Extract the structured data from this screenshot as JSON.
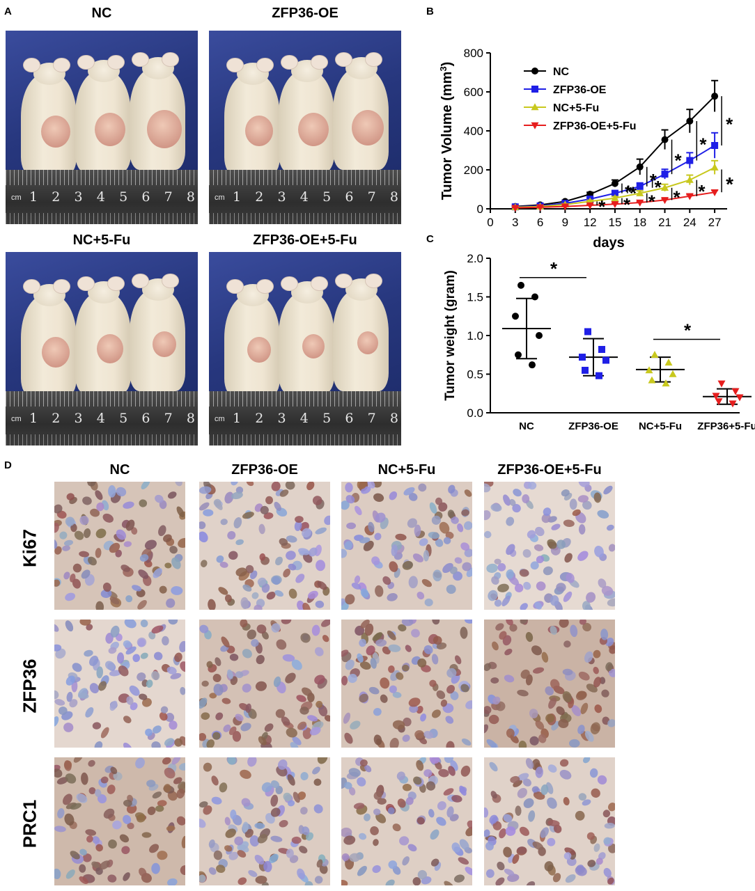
{
  "panels": {
    "a": "A",
    "b": "B",
    "c": "C",
    "d": "D"
  },
  "panel_a": {
    "photos": [
      {
        "title": "NC",
        "tumor_sizes": [
          0.55,
          0.6,
          0.75
        ]
      },
      {
        "title": "ZFP36-OE",
        "tumor_sizes": [
          0.5,
          0.6,
          0.65
        ]
      },
      {
        "title": "NC+5-Fu",
        "tumor_sizes": [
          0.5,
          0.45,
          0.35
        ]
      },
      {
        "title": "ZFP36-OE+5-Fu",
        "tumor_sizes": [
          0.35,
          0.3,
          0.25
        ]
      }
    ],
    "ruler_numbers": [
      "1",
      "2",
      "3",
      "4",
      "5",
      "6",
      "7",
      "8"
    ],
    "ruler_unit": "cm"
  },
  "chart_data": [
    {
      "id": "tumor_volume",
      "type": "line",
      "xlabel": "days",
      "ylabel_main": "Tumor Volume (mm",
      "ylabel_sup": "3",
      "ylabel_close": ")",
      "x": [
        3,
        6,
        9,
        12,
        15,
        18,
        21,
        24,
        27
      ],
      "xticks": [
        0,
        3,
        6,
        9,
        12,
        15,
        18,
        21,
        24,
        27
      ],
      "yticks": [
        0,
        200,
        400,
        600,
        800
      ],
      "xlim": [
        0,
        28.5
      ],
      "ylim": [
        0,
        800
      ],
      "series": [
        {
          "name": "NC",
          "color": "#000000",
          "marker": "circle",
          "values": [
            12,
            20,
            38,
            75,
            130,
            215,
            355,
            450,
            578
          ],
          "err": [
            3,
            5,
            6,
            10,
            18,
            40,
            50,
            60,
            80
          ]
        },
        {
          "name": "ZFP36-OE",
          "color": "#1f1fe6",
          "marker": "square",
          "values": [
            10,
            15,
            28,
            50,
            80,
            115,
            178,
            248,
            325
          ],
          "err": [
            3,
            4,
            5,
            8,
            12,
            18,
            25,
            40,
            65
          ]
        },
        {
          "name": "NC+5-Fu",
          "color": "#c8c81e",
          "marker": "triangle-up",
          "values": [
            8,
            12,
            22,
            38,
            55,
            80,
            108,
            148,
            212
          ],
          "err": [
            2,
            3,
            4,
            6,
            8,
            12,
            18,
            25,
            35
          ]
        },
        {
          "name": "ZFP36-OE+5-Fu",
          "color": "#e61e1e",
          "marker": "triangle-down",
          "values": [
            5,
            8,
            12,
            18,
            24,
            32,
            45,
            65,
            85
          ],
          "err": [
            2,
            2,
            3,
            3,
            4,
            5,
            6,
            8,
            10
          ]
        }
      ],
      "annotations": [
        "*",
        "*",
        "*",
        "*",
        "*",
        "*",
        "*",
        "*",
        "*",
        "*",
        "*",
        "*",
        "*",
        "**"
      ]
    },
    {
      "id": "tumor_weight",
      "type": "scatter",
      "ylabel": "Tumor weight (gram)",
      "categories": [
        "NC",
        "ZFP36-OE",
        "NC+5-Fu",
        "ZFP36+5-Fu"
      ],
      "yticks": [
        "0.0",
        "0.5",
        "1.0",
        "1.5",
        "2.0"
      ],
      "ylim": [
        0,
        2.0
      ],
      "groups": [
        {
          "color": "#000000",
          "marker": "circle",
          "mean": 1.09,
          "sd": 0.39,
          "points": [
            1.65,
            1.5,
            1.25,
            1.0,
            0.75,
            0.62
          ]
        },
        {
          "color": "#1f1fe6",
          "marker": "square",
          "mean": 0.72,
          "sd": 0.24,
          "points": [
            1.05,
            0.82,
            0.72,
            0.68,
            0.55,
            0.48
          ]
        },
        {
          "color": "#c8c81e",
          "marker": "triangle-up",
          "mean": 0.56,
          "sd": 0.16,
          "points": [
            0.75,
            0.65,
            0.55,
            0.5,
            0.42,
            0.38
          ]
        },
        {
          "color": "#e61e1e",
          "marker": "triangle-down",
          "mean": 0.21,
          "sd": 0.1,
          "points": [
            0.38,
            0.28,
            0.22,
            0.2,
            0.15,
            0.12
          ]
        }
      ],
      "significance": [
        "*",
        "*"
      ]
    }
  ],
  "panel_d": {
    "columns": [
      "NC",
      "ZFP36-OE",
      "NC+5-Fu",
      "ZFP36-OE+5-Fu"
    ],
    "rows": [
      {
        "label": "Ki67",
        "stain": [
          0.55,
          0.3,
          0.4,
          0.15
        ]
      },
      {
        "label": "ZFP36",
        "stain": [
          0.2,
          0.6,
          0.55,
          0.85
        ]
      },
      {
        "label": "PRC1",
        "stain": [
          0.75,
          0.4,
          0.35,
          0.3
        ]
      }
    ]
  }
}
